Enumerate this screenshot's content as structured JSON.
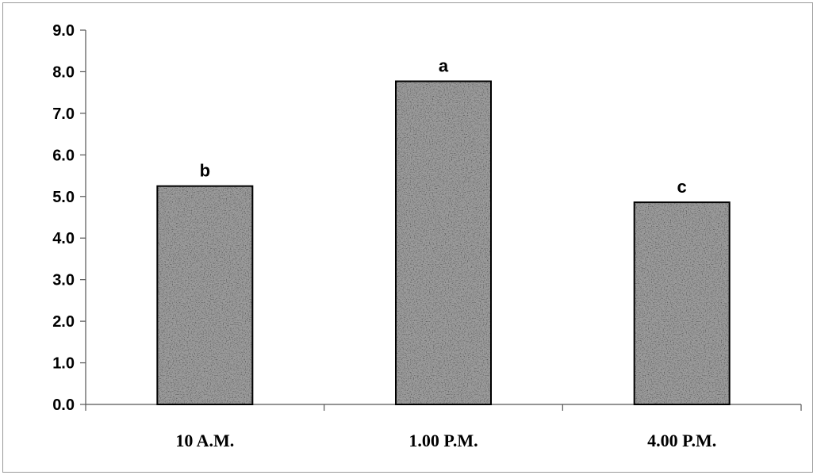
{
  "chart_data": {
    "type": "bar",
    "categories": [
      "10 A.M.",
      "1.00 P.M.",
      "4.00 P.M."
    ],
    "values": [
      5.25,
      7.77,
      4.86
    ],
    "data_labels": [
      "b",
      "a",
      "c"
    ],
    "ylim": [
      0,
      9
    ],
    "yticks": [
      "0.0",
      "1.0",
      "2.0",
      "3.0",
      "4.0",
      "5.0",
      "6.0",
      "7.0",
      "8.0",
      "9.0"
    ],
    "title": "",
    "xlabel": "",
    "ylabel": "",
    "grid": false,
    "legend": "none",
    "bar_fill": "speckled-gray",
    "colors": {
      "bar_base": "#9c9c9c",
      "bar_border": "#000000",
      "axis": "#555555"
    }
  }
}
